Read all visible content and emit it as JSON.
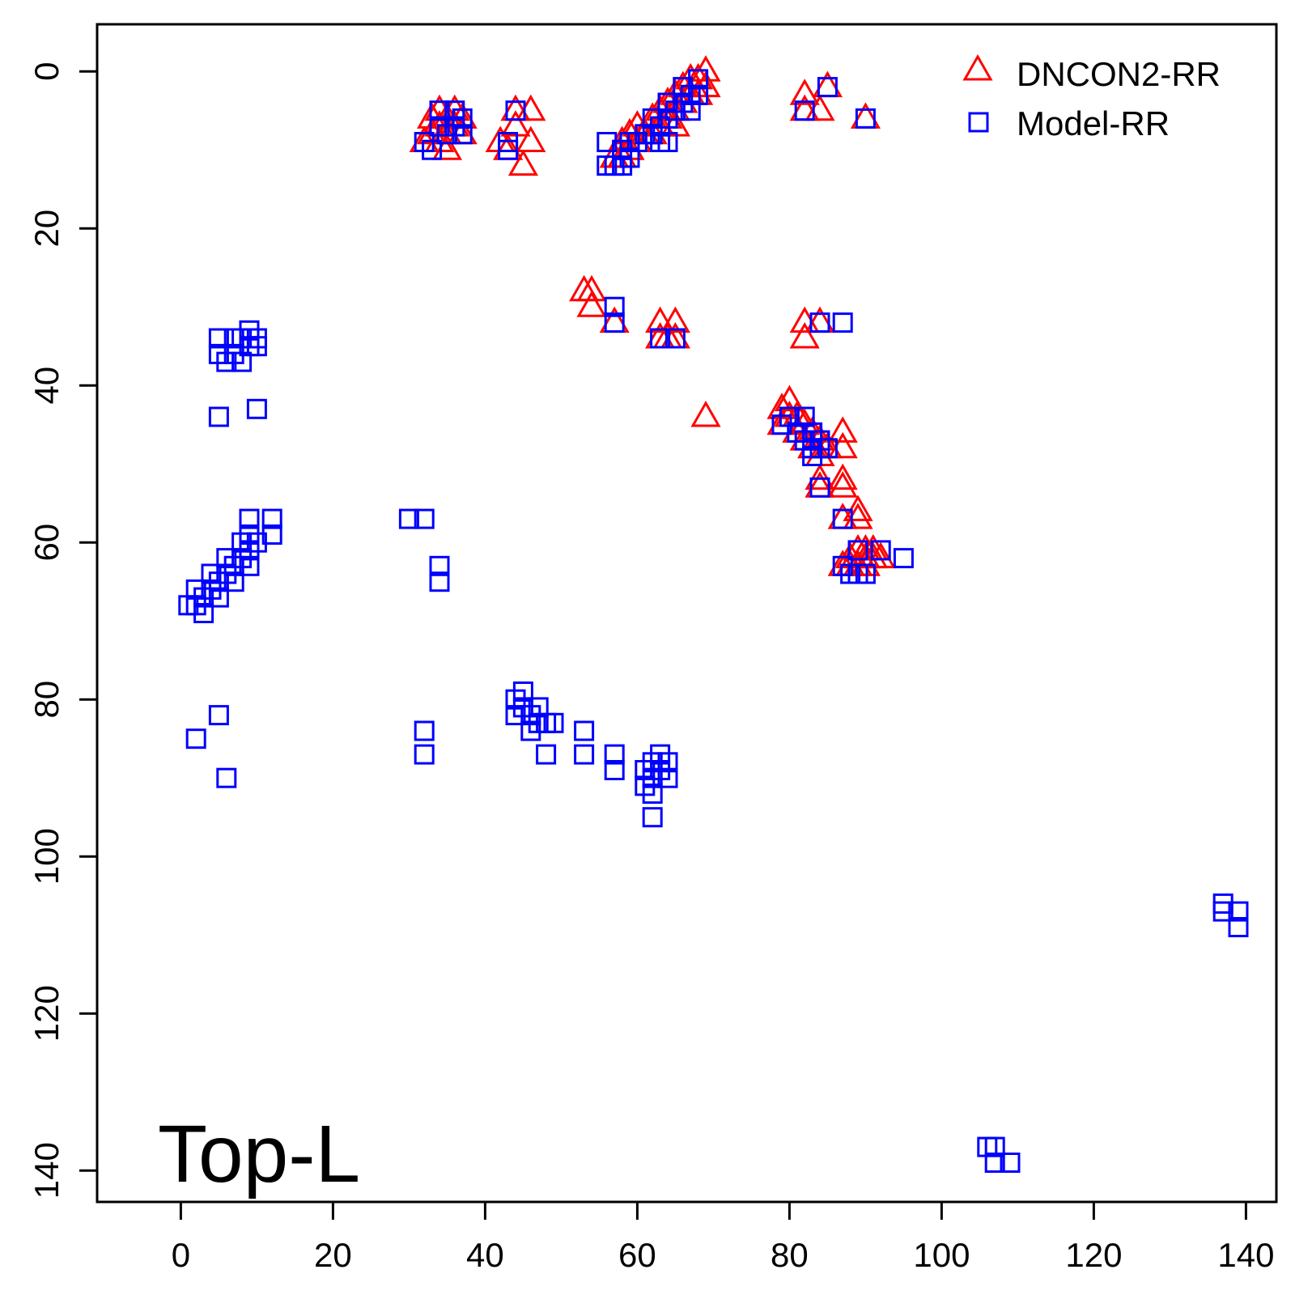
{
  "chart_data": {
    "type": "scatter",
    "title": "",
    "xlabel": "",
    "ylabel": "",
    "xlim": [
      -11,
      144
    ],
    "ylim": [
      144,
      -6
    ],
    "y_reversed": true,
    "x_ticks": [
      0,
      20,
      40,
      60,
      80,
      100,
      120,
      140
    ],
    "y_ticks": [
      0,
      20,
      40,
      60,
      80,
      100,
      120,
      140
    ],
    "grid": false,
    "legend_position": "top-right",
    "annotation": "Top-L",
    "series": [
      {
        "name": "DNCON2-RR",
        "marker": "triangle",
        "color": "#ff0000",
        "points": [
          [
            32,
            9
          ],
          [
            33,
            8
          ],
          [
            33,
            6
          ],
          [
            34,
            5
          ],
          [
            34,
            7
          ],
          [
            34,
            9
          ],
          [
            35,
            6
          ],
          [
            35,
            8
          ],
          [
            35,
            10
          ],
          [
            36,
            5
          ],
          [
            36,
            7
          ],
          [
            37,
            6
          ],
          [
            37,
            8
          ],
          [
            42,
            9
          ],
          [
            43,
            10
          ],
          [
            44,
            5
          ],
          [
            44,
            7
          ],
          [
            45,
            12
          ],
          [
            46,
            5
          ],
          [
            46,
            9
          ],
          [
            57,
            11
          ],
          [
            58,
            9
          ],
          [
            58,
            11
          ],
          [
            59,
            8
          ],
          [
            59,
            10
          ],
          [
            60,
            7
          ],
          [
            60,
            9
          ],
          [
            61,
            8
          ],
          [
            62,
            6
          ],
          [
            62,
            8
          ],
          [
            63,
            5
          ],
          [
            63,
            7
          ],
          [
            64,
            4
          ],
          [
            64,
            6
          ],
          [
            65,
            3
          ],
          [
            65,
            5
          ],
          [
            65,
            7
          ],
          [
            66,
            2
          ],
          [
            66,
            4
          ],
          [
            67,
            1
          ],
          [
            67,
            3
          ],
          [
            68,
            1
          ],
          [
            68,
            3
          ],
          [
            69,
            0
          ],
          [
            69,
            2
          ],
          [
            82,
            3
          ],
          [
            82,
            5
          ],
          [
            84,
            5
          ],
          [
            85,
            2
          ],
          [
            90,
            6
          ],
          [
            53,
            28
          ],
          [
            54,
            28
          ],
          [
            54,
            30
          ],
          [
            57,
            32
          ],
          [
            63,
            32
          ],
          [
            63,
            34
          ],
          [
            64,
            34
          ],
          [
            65,
            32
          ],
          [
            65,
            34
          ],
          [
            82,
            32
          ],
          [
            82,
            34
          ],
          [
            84,
            32
          ],
          [
            69,
            44
          ],
          [
            79,
            43
          ],
          [
            79,
            45
          ],
          [
            80,
            42
          ],
          [
            80,
            44
          ],
          [
            81,
            44
          ],
          [
            81,
            46
          ],
          [
            82,
            45
          ],
          [
            82,
            47
          ],
          [
            83,
            46
          ],
          [
            83,
            48
          ],
          [
            84,
            47
          ],
          [
            84,
            49
          ],
          [
            85,
            48
          ],
          [
            84,
            52
          ],
          [
            84,
            53
          ],
          [
            87,
            46
          ],
          [
            87,
            48
          ],
          [
            87,
            52
          ],
          [
            87,
            53
          ],
          [
            87,
            57
          ],
          [
            89,
            56
          ],
          [
            89,
            57
          ],
          [
            87,
            63
          ],
          [
            88,
            62
          ],
          [
            88,
            63
          ],
          [
            89,
            61
          ],
          [
            89,
            63
          ],
          [
            90,
            61
          ],
          [
            90,
            62
          ],
          [
            90,
            63
          ],
          [
            91,
            61
          ],
          [
            91,
            62
          ],
          [
            92,
            62
          ]
        ]
      },
      {
        "name": "Model-RR",
        "marker": "square",
        "color": "#0000ff",
        "points": [
          [
            32,
            9
          ],
          [
            33,
            10
          ],
          [
            34,
            5
          ],
          [
            34,
            7
          ],
          [
            35,
            8
          ],
          [
            36,
            5
          ],
          [
            36,
            7
          ],
          [
            37,
            6
          ],
          [
            37,
            8
          ],
          [
            43,
            9
          ],
          [
            43,
            10
          ],
          [
            44,
            5
          ],
          [
            56,
            9
          ],
          [
            56,
            12
          ],
          [
            57,
            12
          ],
          [
            58,
            10
          ],
          [
            58,
            12
          ],
          [
            59,
            9
          ],
          [
            59,
            11
          ],
          [
            60,
            9
          ],
          [
            61,
            8
          ],
          [
            62,
            6
          ],
          [
            62,
            8
          ],
          [
            63,
            7
          ],
          [
            63,
            9
          ],
          [
            64,
            4
          ],
          [
            64,
            6
          ],
          [
            64,
            9
          ],
          [
            65,
            5
          ],
          [
            66,
            2
          ],
          [
            66,
            4
          ],
          [
            67,
            3
          ],
          [
            67,
            5
          ],
          [
            68,
            1
          ],
          [
            68,
            3
          ],
          [
            82,
            5
          ],
          [
            85,
            2
          ],
          [
            90,
            6
          ],
          [
            57,
            30
          ],
          [
            57,
            32
          ],
          [
            63,
            34
          ],
          [
            65,
            34
          ],
          [
            84,
            32
          ],
          [
            87,
            32
          ],
          [
            79,
            45
          ],
          [
            80,
            44
          ],
          [
            81,
            46
          ],
          [
            82,
            44
          ],
          [
            82,
            47
          ],
          [
            83,
            46
          ],
          [
            83,
            48
          ],
          [
            83,
            49
          ],
          [
            84,
            47
          ],
          [
            84,
            48
          ],
          [
            84,
            53
          ],
          [
            85,
            48
          ],
          [
            87,
            57
          ],
          [
            87,
            63
          ],
          [
            88,
            64
          ],
          [
            89,
            61
          ],
          [
            89,
            64
          ],
          [
            90,
            64
          ],
          [
            92,
            61
          ],
          [
            95,
            62
          ],
          [
            5,
            34
          ],
          [
            5,
            36
          ],
          [
            6,
            37
          ],
          [
            7,
            34
          ],
          [
            7,
            36
          ],
          [
            8,
            34
          ],
          [
            8,
            37
          ],
          [
            9,
            33
          ],
          [
            9,
            35
          ],
          [
            10,
            34
          ],
          [
            10,
            35
          ],
          [
            5,
            44
          ],
          [
            10,
            43
          ],
          [
            1,
            68
          ],
          [
            2,
            66
          ],
          [
            2,
            68
          ],
          [
            3,
            67
          ],
          [
            3,
            69
          ],
          [
            4,
            64
          ],
          [
            4,
            66
          ],
          [
            5,
            65
          ],
          [
            5,
            67
          ],
          [
            6,
            62
          ],
          [
            6,
            64
          ],
          [
            7,
            63
          ],
          [
            7,
            65
          ],
          [
            8,
            60
          ],
          [
            8,
            62
          ],
          [
            9,
            57
          ],
          [
            9,
            59
          ],
          [
            9,
            61
          ],
          [
            9,
            63
          ],
          [
            10,
            60
          ],
          [
            12,
            57
          ],
          [
            12,
            59
          ],
          [
            30,
            57
          ],
          [
            32,
            57
          ],
          [
            34,
            63
          ],
          [
            34,
            65
          ],
          [
            2,
            85
          ],
          [
            5,
            82
          ],
          [
            6,
            90
          ],
          [
            32,
            84
          ],
          [
            32,
            87
          ],
          [
            44,
            80
          ],
          [
            44,
            82
          ],
          [
            45,
            79
          ],
          [
            45,
            81
          ],
          [
            46,
            82
          ],
          [
            46,
            84
          ],
          [
            47,
            81
          ],
          [
            47,
            83
          ],
          [
            48,
            83
          ],
          [
            48,
            87
          ],
          [
            49,
            83
          ],
          [
            53,
            84
          ],
          [
            53,
            87
          ],
          [
            57,
            87
          ],
          [
            57,
            89
          ],
          [
            61,
            89
          ],
          [
            61,
            91
          ],
          [
            62,
            88
          ],
          [
            62,
            90
          ],
          [
            62,
            92
          ],
          [
            62,
            95
          ],
          [
            63,
            87
          ],
          [
            63,
            89
          ],
          [
            64,
            88
          ],
          [
            64,
            90
          ],
          [
            106,
            137
          ],
          [
            107,
            137
          ],
          [
            107,
            139
          ],
          [
            109,
            139
          ],
          [
            137,
            106
          ],
          [
            137,
            107
          ],
          [
            139,
            107
          ],
          [
            139,
            109
          ]
        ]
      }
    ]
  }
}
